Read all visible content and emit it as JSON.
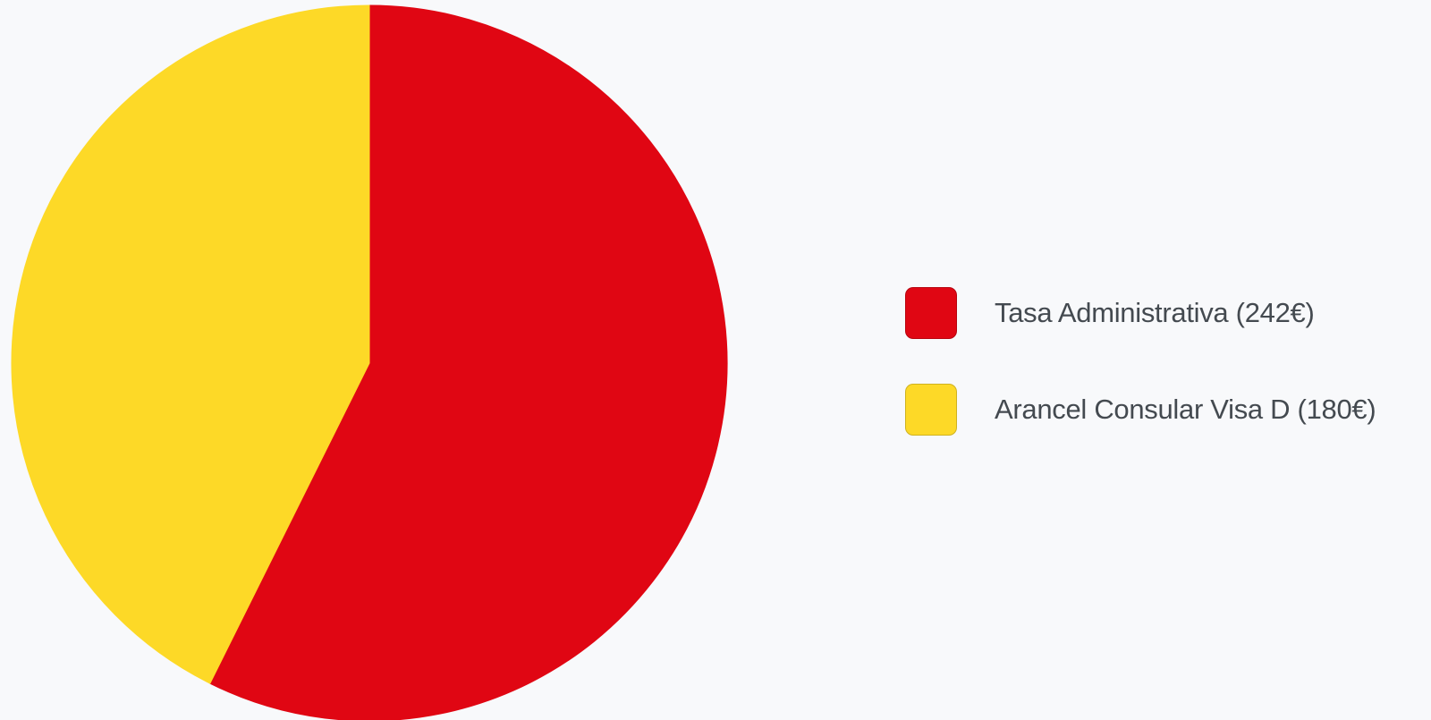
{
  "chart_data": {
    "type": "pie",
    "categories": [
      "Tasa Administrativa (242€)",
      "Arancel Consular Visa D (180€)"
    ],
    "values": [
      242,
      180
    ],
    "colors": [
      "#e00613",
      "#fdd927"
    ],
    "legend_position": "right",
    "start_angle": "top",
    "direction": "clockwise"
  }
}
